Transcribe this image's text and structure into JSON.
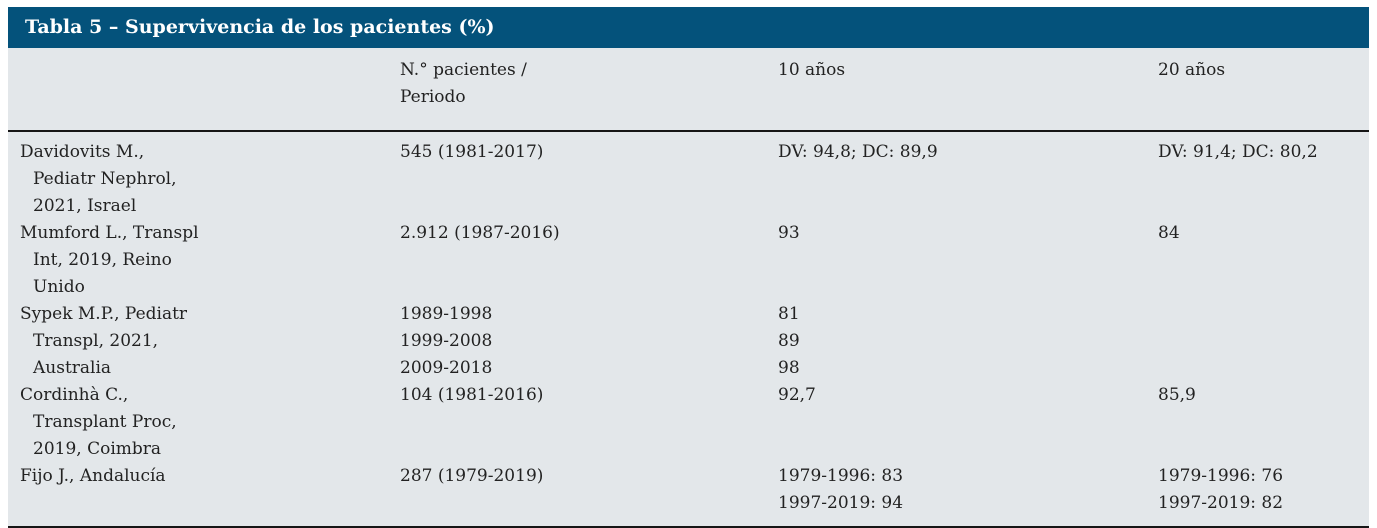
{
  "table": {
    "title": "Tabla 5 – Supervivencia de los pacientes (%)",
    "columns": {
      "study": "",
      "n_period_line1": "N.° pacientes /",
      "n_period_line2": "Periodo",
      "y10": "10 años",
      "y20": "20 años"
    },
    "rows": [
      {
        "study_lines": [
          "Davidovits M.,",
          "Pediatr Nephrol,",
          "2021, Israel"
        ],
        "n_lines": [
          "545 (1981-2017)"
        ],
        "y10_lines": [
          "DV: 94,8; DC: 89,9"
        ],
        "y20_lines": [
          "DV: 91,4; DC: 80,2"
        ]
      },
      {
        "study_lines": [
          "Mumford L., Transpl",
          "Int, 2019, Reino",
          "Unido"
        ],
        "n_lines": [
          "2.912 (1987-2016)"
        ],
        "y10_lines": [
          "93"
        ],
        "y20_lines": [
          "84"
        ]
      },
      {
        "study_lines": [
          "Sypek M.P., Pediatr",
          "Transpl, 2021,",
          "Australia"
        ],
        "n_lines": [
          "1989-1998",
          "1999-2008",
          "2009-2018"
        ],
        "y10_lines": [
          "81",
          "89",
          "98"
        ],
        "y20_lines": []
      },
      {
        "study_lines": [
          "Cordinhà C.,",
          "Transplant Proc,",
          "2019, Coimbra"
        ],
        "n_lines": [
          "104 (1981-2016)"
        ],
        "y10_lines": [
          "92,7"
        ],
        "y20_lines": [
          "85,9"
        ]
      },
      {
        "study_lines": [
          "Fijo J., Andalucía"
        ],
        "n_lines": [
          "287 (1979-2019)"
        ],
        "y10_lines": [
          "1979-1996: 83",
          "1997-2019: 94"
        ],
        "y20_lines": [
          "1979-1996: 76",
          "1997-2019: 82"
        ]
      }
    ]
  },
  "colors": {
    "title_bar": "#04527b",
    "body_bg": "#e3e7ea",
    "rule": "#161616",
    "text": "#222222",
    "title_text": "#ffffff"
  }
}
